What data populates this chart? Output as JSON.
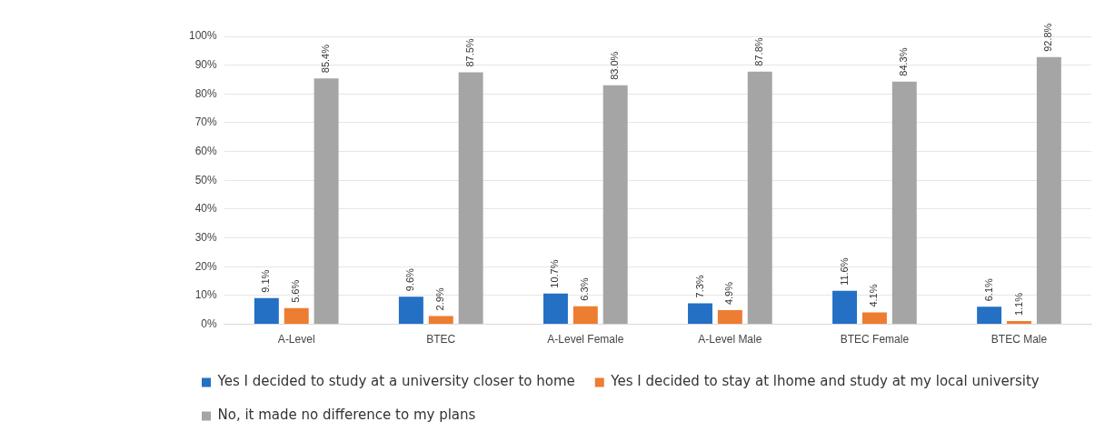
{
  "chart_data": {
    "type": "bar",
    "categories": [
      "A-Level",
      "BTEC",
      "A-Level Female",
      "A-Level Male",
      "BTEC Female",
      "BTEC Male"
    ],
    "series": [
      {
        "name": "Yes I decided to study at a university closer to home",
        "color": "#2370c4",
        "values": [
          9.1,
          9.6,
          10.7,
          7.3,
          11.6,
          6.1
        ],
        "value_labels": [
          "9.1%",
          "9.6%",
          "10.7%",
          "7.3%",
          "11.6%",
          "6.1%"
        ]
      },
      {
        "name": "Yes I decided to stay at lhome and study at my local university",
        "color": "#ed7d31",
        "values": [
          5.6,
          2.9,
          6.3,
          4.9,
          4.1,
          1.1
        ],
        "value_labels": [
          "5.6%",
          "2.9%",
          "6.3%",
          "4.9%",
          "4.1%",
          "1.1%"
        ]
      },
      {
        "name": "No, it made no difference to my plans",
        "color": "#a5a5a5",
        "values": [
          85.4,
          87.5,
          83.0,
          87.8,
          84.3,
          92.8
        ],
        "value_labels": [
          "85.4%",
          "87.5%",
          "83.0%",
          "87.8%",
          "84.3%",
          "92.8%"
        ]
      }
    ],
    "ylim": [
      0,
      100
    ],
    "yticks": [
      {
        "value": 0,
        "label": "0%"
      },
      {
        "value": 10,
        "label": "10%"
      },
      {
        "value": 20,
        "label": "20%"
      },
      {
        "value": 30,
        "label": "30%"
      },
      {
        "value": 40,
        "label": "40%"
      },
      {
        "value": 50,
        "label": "50%"
      },
      {
        "value": 60,
        "label": "60%"
      },
      {
        "value": 70,
        "label": "70%"
      },
      {
        "value": 80,
        "label": "80%"
      },
      {
        "value": 90,
        "label": "90%"
      },
      {
        "value": 100,
        "label": "100%"
      }
    ],
    "grid": "y",
    "legend": "bottom"
  }
}
